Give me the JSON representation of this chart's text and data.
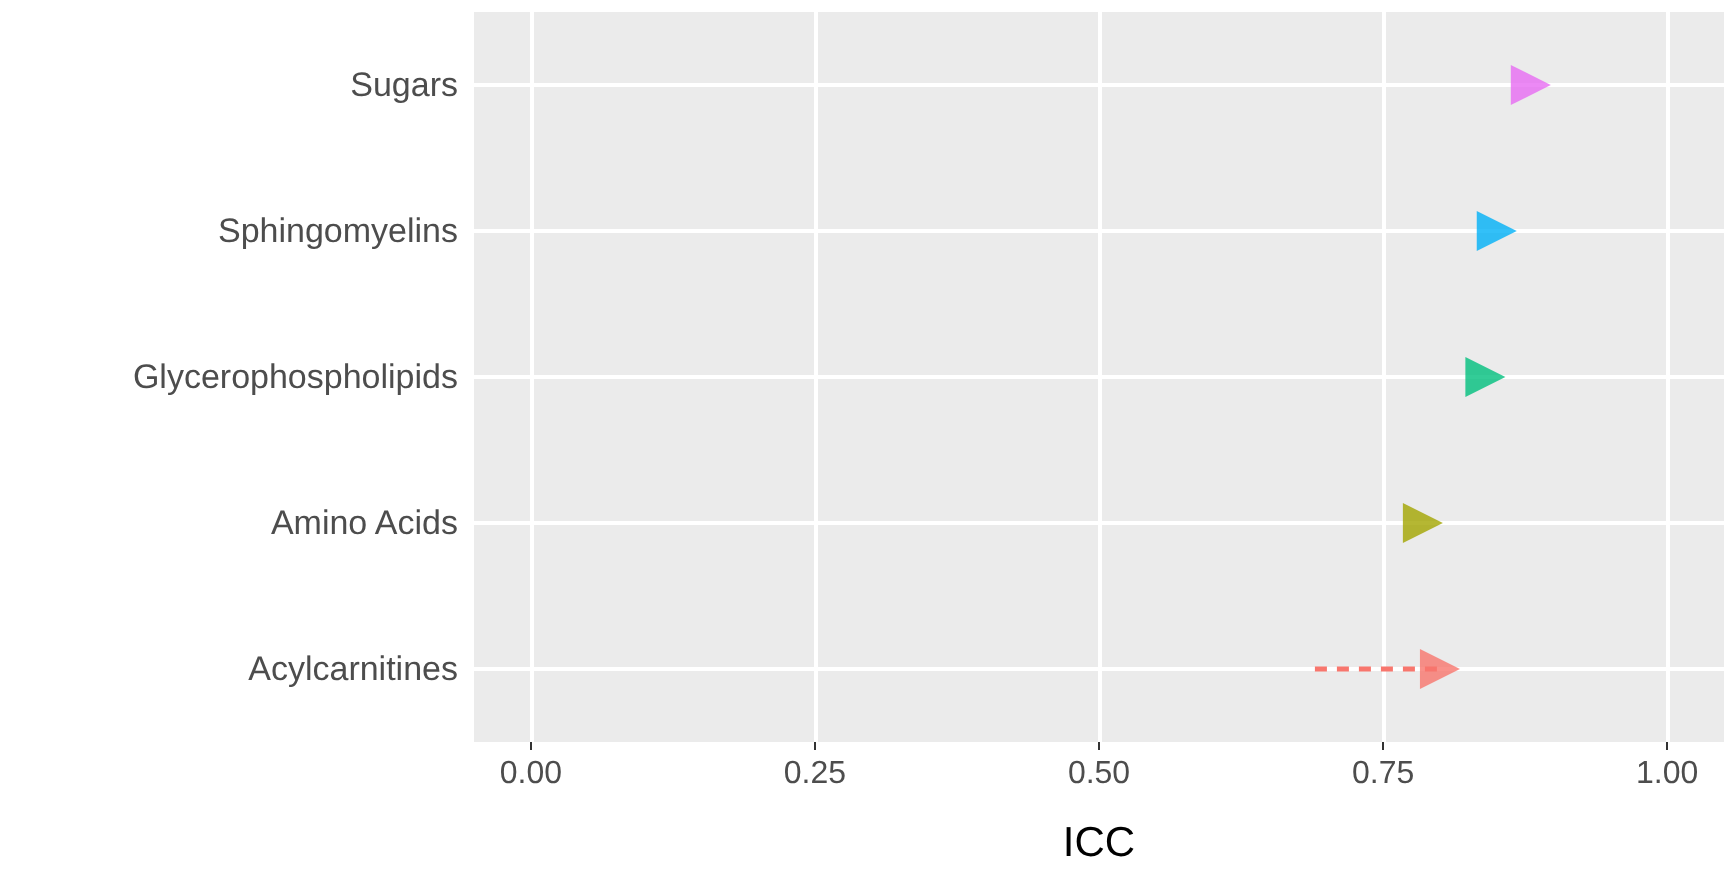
{
  "chart_data": {
    "type": "scatter",
    "orientation": "horizontal",
    "xlabel": "ICC",
    "categories": [
      "Sugars",
      "Sphingomyelins",
      "Glycerophospholipids",
      "Amino Acids",
      "Acylcarnitines"
    ],
    "values": [
      0.88,
      0.85,
      0.84,
      0.785,
      0.8
    ],
    "colors": [
      "#e76bf3",
      "#00b0f6",
      "#00bf7d",
      "#a3a500",
      "#f8766d"
    ],
    "errors": [
      null,
      null,
      null,
      null,
      [
        0.69,
        0.8
      ]
    ],
    "xlim": [
      -0.05,
      1.05
    ],
    "xticks": [
      {
        "value": 0,
        "label": "0.00"
      },
      {
        "value": 0.25,
        "label": "0.25"
      },
      {
        "value": 0.5,
        "label": "0.50"
      },
      {
        "value": 0.75,
        "label": "0.75"
      },
      {
        "value": 1,
        "label": "1.00"
      }
    ],
    "grid": true,
    "marker": "triangle",
    "line_style": "dashed"
  }
}
